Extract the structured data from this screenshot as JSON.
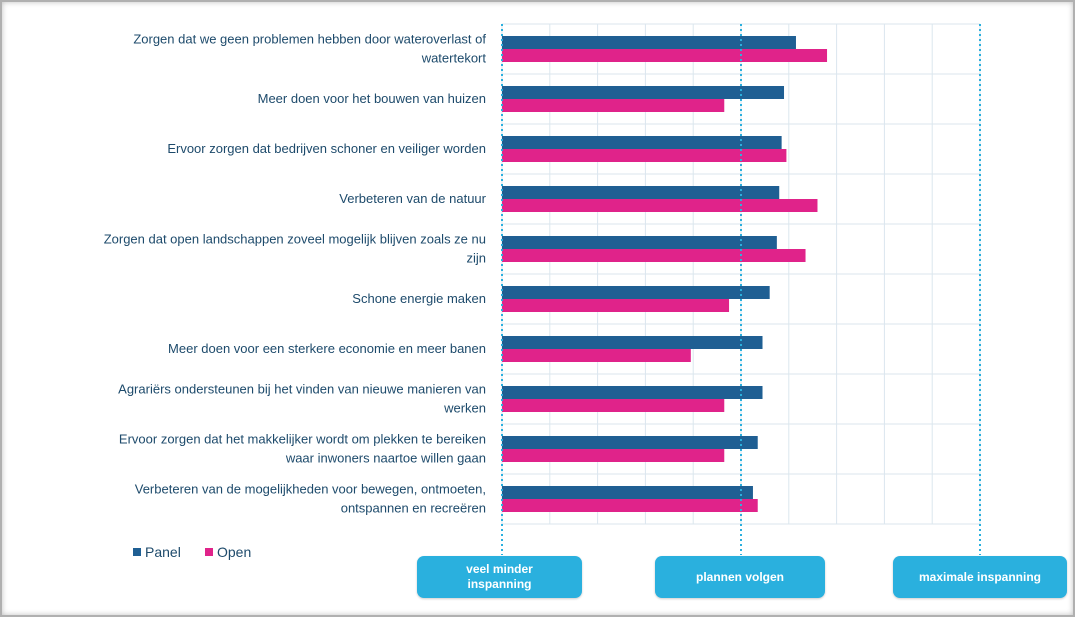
{
  "chart_data": {
    "type": "bar",
    "orientation": "horizontal",
    "categories": [
      [
        "Zorgen dat we geen problemen hebben door wateroverlast of",
        "watertekort"
      ],
      [
        "Meer doen voor het bouwen van huizen"
      ],
      [
        "Ervoor zorgen dat bedrijven schoner en veiliger worden"
      ],
      [
        "Verbeteren van de natuur"
      ],
      [
        "Zorgen dat open landschappen zoveel mogelijk blijven zoals ze nu",
        "zijn"
      ],
      [
        "Schone energie maken"
      ],
      [
        "Meer doen voor een sterkere economie en meer banen"
      ],
      [
        "Agrariërs ondersteunen bij het vinden van nieuwe manieren van",
        "werken"
      ],
      [
        "Ervoor zorgen dat het makkelijker wordt om plekken te bereiken",
        "waar inwoners naartoe willen gaan"
      ],
      [
        "Verbeteren van de mogelijkheden voor bewegen, ontmoeten,",
        "ontspannen en recreëren"
      ]
    ],
    "series": [
      {
        "name": "Panel",
        "color": "#1f5f93",
        "values": [
          0.23,
          0.18,
          0.17,
          0.16,
          0.15,
          0.12,
          0.09,
          0.09,
          0.07,
          0.05
        ]
      },
      {
        "name": "Open",
        "color": "#e0238a",
        "values": [
          0.36,
          -0.07,
          0.19,
          0.32,
          0.27,
          -0.05,
          -0.21,
          -0.07,
          -0.07,
          0.07
        ]
      }
    ],
    "xlim": [
      -1,
      1
    ],
    "scale_labels": [
      {
        "value": -1,
        "label": "veel minder inspanning"
      },
      {
        "value": 0,
        "label": "plannen volgen"
      },
      {
        "value": 1,
        "label": "maximale inspanning"
      }
    ],
    "grid": true,
    "legend": "bottom-left"
  }
}
